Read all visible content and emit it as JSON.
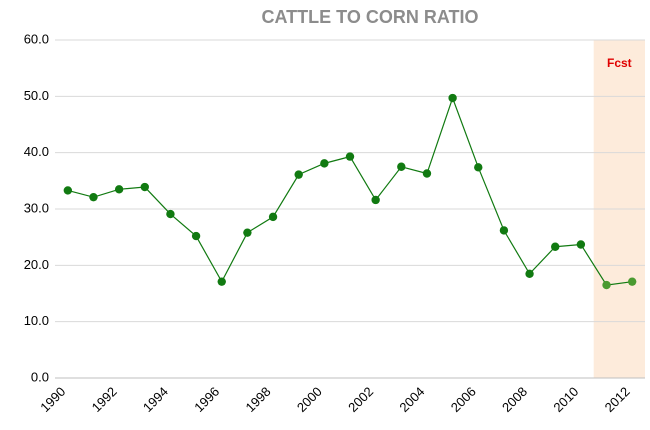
{
  "chart_data": {
    "type": "line",
    "title": "CATTLE TO CORN RATIO",
    "categories": [
      "1990",
      null,
      "1992",
      null,
      "1994",
      null,
      "1996",
      null,
      "1998",
      null,
      "2000",
      null,
      "2002",
      null,
      "2004",
      null,
      "2006",
      null,
      "2008",
      null,
      "2010",
      null,
      "2012"
    ],
    "values": [
      33.3,
      32.1,
      33.5,
      33.9,
      29.1,
      25.2,
      17.1,
      25.8,
      28.6,
      36.1,
      38.1,
      39.3,
      31.6,
      37.5,
      36.3,
      49.7,
      37.4,
      26.2,
      18.5,
      23.3,
      23.7,
      16.5,
      17.1
    ],
    "color": "#117a11",
    "forecast_color": "#4a9a30",
    "point_colors": [
      "#117a11",
      "#117a11",
      "#117a11",
      "#117a11",
      "#117a11",
      "#117a11",
      "#117a11",
      "#117a11",
      "#117a11",
      "#117a11",
      "#117a11",
      "#117a11",
      "#117a11",
      "#117a11",
      "#117a11",
      "#117a11",
      "#117a11",
      "#117a11",
      "#117a11",
      "#117a11",
      "#117a11",
      "#4a9a30",
      "#4a9a30"
    ],
    "shade_color": "#fdebdb",
    "annotation": {
      "text": "Fcst",
      "color": "#e00000"
    },
    "ylim": [
      0,
      60
    ],
    "yticks": [
      {
        "value": 0,
        "label": "0.0"
      },
      {
        "value": 10,
        "label": "10.0"
      },
      {
        "value": 20,
        "label": "20.0"
      },
      {
        "value": 30,
        "label": "30.0"
      },
      {
        "value": 40,
        "label": "40.0"
      },
      {
        "value": 50,
        "label": "50.0"
      },
      {
        "value": 60,
        "label": "60.0"
      }
    ],
    "grid": true
  }
}
